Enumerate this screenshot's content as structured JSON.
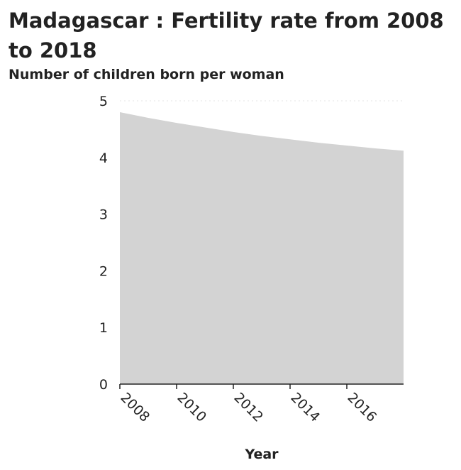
{
  "chart_data": {
    "type": "area",
    "title": "Madagascar : Fertility rate from 2008 to 2018",
    "xlabel": "Year",
    "ylabel": "Number of children born per woman",
    "x": [
      2008,
      2009,
      2010,
      2011,
      2012,
      2013,
      2014,
      2015,
      2016,
      2017,
      2018
    ],
    "values": [
      4.8,
      4.7,
      4.61,
      4.53,
      4.45,
      4.38,
      4.32,
      4.26,
      4.21,
      4.16,
      4.12
    ],
    "xlim": [
      2008,
      2018
    ],
    "ylim": [
      0,
      5
    ],
    "xticks": [
      "2008",
      "2010",
      "2012",
      "2014",
      "2016"
    ],
    "yticks": [
      "0",
      "1",
      "2",
      "3",
      "4",
      "5"
    ],
    "grid": true,
    "fill_color": "#d3d3d3",
    "legend": "none"
  }
}
